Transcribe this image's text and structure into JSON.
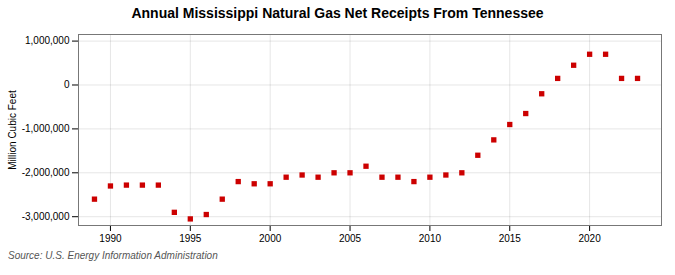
{
  "chart_data": {
    "type": "scatter",
    "title": "Annual Mississippi Natural Gas Net Receipts From Tennessee",
    "ylabel": "Million Cubic Feet",
    "annotations": [
      "Source: U.S. Energy Information Administration"
    ],
    "x": [
      1989,
      1990,
      1991,
      1992,
      1993,
      1994,
      1995,
      1996,
      1997,
      1998,
      1999,
      2000,
      2001,
      2002,
      2003,
      2004,
      2005,
      2006,
      2007,
      2008,
      2009,
      2010,
      2011,
      2012,
      2013,
      2014,
      2015,
      2016,
      2017,
      2018,
      2019,
      2020,
      2021,
      2022,
      2023
    ],
    "values": [
      -2600000,
      -2300000,
      -2280000,
      -2280000,
      -2280000,
      -2900000,
      -3050000,
      -2950000,
      -2600000,
      -2200000,
      -2250000,
      -2250000,
      -2100000,
      -2050000,
      -2100000,
      -2000000,
      -2000000,
      -1850000,
      -2100000,
      -2100000,
      -2200000,
      -2100000,
      -2050000,
      -2000000,
      -1600000,
      -1250000,
      -900000,
      -650000,
      -200000,
      150000,
      450000,
      700000,
      700000,
      150000,
      150000
    ],
    "color": "#cc0000",
    "marker": "square",
    "xlim": [
      1988.0,
      2024.5
    ],
    "xticks": [
      1990,
      1995,
      2000,
      2005,
      2010,
      2015,
      2020
    ],
    "ylim": [
      -3200000,
      1150000
    ],
    "yticks": [
      {
        "value": -3000000,
        "label": "-3,000,000"
      },
      {
        "value": -2000000,
        "label": "-2,000,000"
      },
      {
        "value": -1000000,
        "label": "-1,000,000"
      },
      0,
      {
        "value": 1000000,
        "label": "1,000,000"
      }
    ],
    "grid": true
  }
}
